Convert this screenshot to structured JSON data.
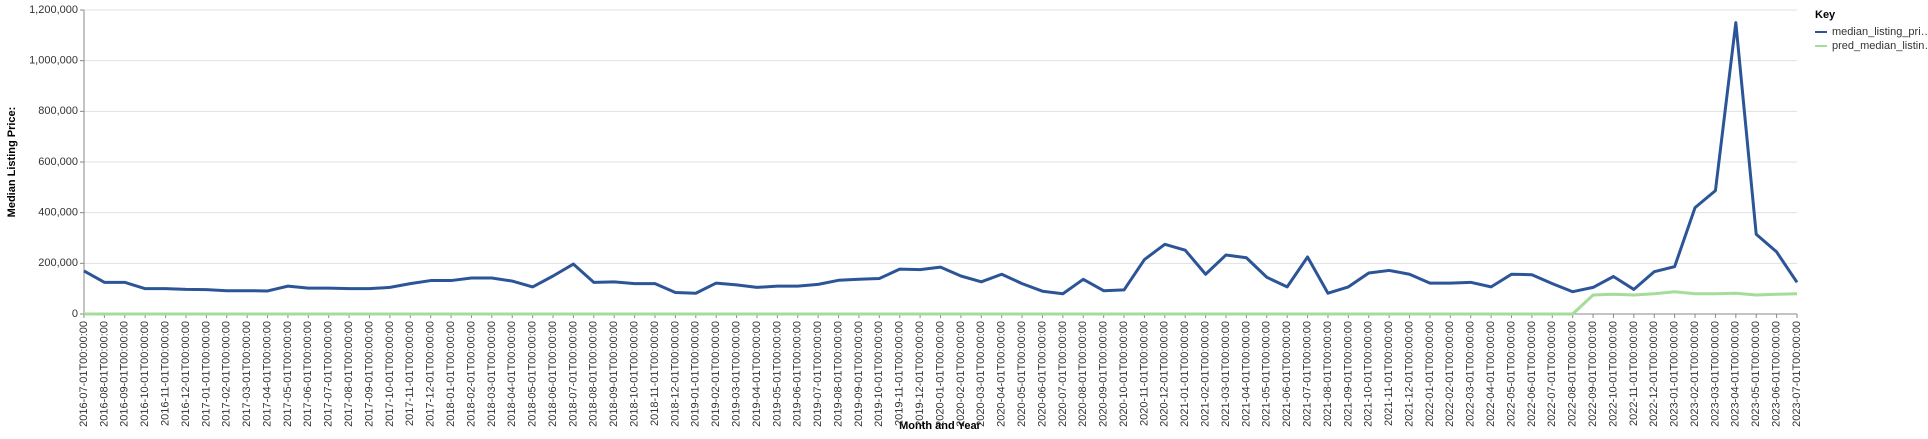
{
  "chart_data": {
    "type": "line",
    "x_label": "Month and Year",
    "y_label": "Median Listing Price:",
    "legend_title": "Key",
    "legend_position": "right",
    "grid": true,
    "categories": [
      "2016-07-01T00:00:00",
      "2016-08-01T00:00:00",
      "2016-09-01T00:00:00",
      "2016-10-01T00:00:00",
      "2016-11-01T00:00:00",
      "2016-12-01T00:00:00",
      "2017-01-01T00:00:00",
      "2017-02-01T00:00:00",
      "2017-03-01T00:00:00",
      "2017-04-01T00:00:00",
      "2017-05-01T00:00:00",
      "2017-06-01T00:00:00",
      "2017-07-01T00:00:00",
      "2017-08-01T00:00:00",
      "2017-09-01T00:00:00",
      "2017-10-01T00:00:00",
      "2017-11-01T00:00:00",
      "2017-12-01T00:00:00",
      "2018-01-01T00:00:00",
      "2018-02-01T00:00:00",
      "2018-03-01T00:00:00",
      "2018-04-01T00:00:00",
      "2018-05-01T00:00:00",
      "2018-06-01T00:00:00",
      "2018-07-01T00:00:00",
      "2018-08-01T00:00:00",
      "2018-09-01T00:00:00",
      "2018-10-01T00:00:00",
      "2018-11-01T00:00:00",
      "2018-12-01T00:00:00",
      "2019-01-01T00:00:00",
      "2019-02-01T00:00:00",
      "2019-03-01T00:00:00",
      "2019-04-01T00:00:00",
      "2019-05-01T00:00:00",
      "2019-06-01T00:00:00",
      "2019-07-01T00:00:00",
      "2019-08-01T00:00:00",
      "2019-09-01T00:00:00",
      "2019-10-01T00:00:00",
      "2019-11-01T00:00:00",
      "2019-12-01T00:00:00",
      "2020-01-01T00:00:00",
      "2020-02-01T00:00:00",
      "2020-03-01T00:00:00",
      "2020-04-01T00:00:00",
      "2020-05-01T00:00:00",
      "2020-06-01T00:00:00",
      "2020-07-01T00:00:00",
      "2020-08-01T00:00:00",
      "2020-09-01T00:00:00",
      "2020-10-01T00:00:00",
      "2020-11-01T00:00:00",
      "2020-12-01T00:00:00",
      "2021-01-01T00:00:00",
      "2021-02-01T00:00:00",
      "2021-03-01T00:00:00",
      "2021-04-01T00:00:00",
      "2021-05-01T00:00:00",
      "2021-06-01T00:00:00",
      "2021-07-01T00:00:00",
      "2021-08-01T00:00:00",
      "2021-09-01T00:00:00",
      "2021-10-01T00:00:00",
      "2021-11-01T00:00:00",
      "2021-12-01T00:00:00",
      "2022-01-01T00:00:00",
      "2022-02-01T00:00:00",
      "2022-03-01T00:00:00",
      "2022-04-01T00:00:00",
      "2022-05-01T00:00:00",
      "2022-06-01T00:00:00",
      "2022-07-01T00:00:00",
      "2022-08-01T00:00:00",
      "2022-09-01T00:00:00",
      "2022-10-01T00:00:00",
      "2022-11-01T00:00:00",
      "2022-12-01T00:00:00",
      "2023-01-01T00:00:00",
      "2023-02-01T00:00:00",
      "2023-03-01T00:00:00",
      "2023-04-01T00:00:00",
      "2023-05-01T00:00:00",
      "2023-06-01T00:00:00",
      "2023-07-01T00:00:00"
    ],
    "series": [
      {
        "name": "median_listing_pri…",
        "color": "#2c5597",
        "values": [
          170000,
          125000,
          125000,
          100000,
          100000,
          97000,
          96000,
          92000,
          92000,
          91000,
          110000,
          102000,
          102000,
          100000,
          100000,
          105000,
          120000,
          132000,
          132000,
          142000,
          142000,
          130000,
          107000,
          150000,
          197000,
          125000,
          127000,
          120000,
          120000,
          85000,
          82000,
          122000,
          115000,
          105000,
          110000,
          110000,
          117000,
          133000,
          137000,
          140000,
          177000,
          175000,
          185000,
          150000,
          127000,
          157000,
          120000,
          90000,
          80000,
          137000,
          92000,
          95000,
          215000,
          275000,
          252000,
          157000,
          233000,
          222000,
          145000,
          107000,
          225000,
          82000,
          107000,
          162000,
          172000,
          157000,
          122000,
          122000,
          125000,
          107000,
          157000,
          155000,
          120000,
          88000,
          105000,
          148000,
          97000,
          167000,
          187000,
          420000,
          487000,
          1150000,
          315000,
          245000,
          125000
        ]
      },
      {
        "name": "pred_median_listin…",
        "color": "#a6dc9a",
        "values": [
          0,
          0,
          0,
          0,
          0,
          0,
          0,
          0,
          0,
          0,
          0,
          0,
          0,
          0,
          0,
          0,
          0,
          0,
          0,
          0,
          0,
          0,
          0,
          0,
          0,
          0,
          0,
          0,
          0,
          0,
          0,
          0,
          0,
          0,
          0,
          0,
          0,
          0,
          0,
          0,
          0,
          0,
          0,
          0,
          0,
          0,
          0,
          0,
          0,
          0,
          0,
          0,
          0,
          0,
          0,
          0,
          0,
          0,
          0,
          0,
          0,
          0,
          0,
          0,
          0,
          0,
          0,
          0,
          0,
          0,
          0,
          0,
          0,
          0,
          75000,
          78000,
          75000,
          80000,
          88000,
          80000,
          80000,
          82000,
          75000,
          78000,
          80000
        ]
      }
    ],
    "ylim": [
      0,
      1200000
    ],
    "yticks": [
      0,
      {
        "value": 200000,
        "label": "200,000"
      },
      {
        "value": 400000,
        "label": "400,000"
      },
      {
        "value": 600000,
        "label": "600,000"
      },
      {
        "value": 800000,
        "label": "800,000"
      },
      {
        "value": 1000000,
        "label": "1,000,000"
      },
      {
        "value": 1200000,
        "label": "1,200,000"
      }
    ]
  }
}
